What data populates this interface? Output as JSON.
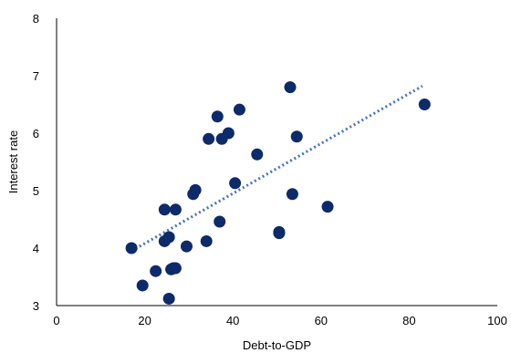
{
  "chart_data": {
    "type": "scatter",
    "title": "",
    "xlabel": "Debt-to-GDP",
    "ylabel": "Interest rate",
    "xlim": [
      0,
      100
    ],
    "ylim": [
      3,
      8
    ],
    "xticks": [
      0,
      20,
      40,
      60,
      80,
      100
    ],
    "yticks": [
      3,
      4,
      5,
      6,
      7,
      8
    ],
    "grid": false,
    "legend": "none",
    "marker_color": "#0d2a6b",
    "trendline": {
      "type": "linear",
      "style": "dotted",
      "color": "#4472c4",
      "x_start": 17,
      "y_start": 3.95,
      "x_end": 83,
      "y_end": 6.82
    },
    "series": [
      {
        "x": [
          17,
          19.5,
          22.5,
          24.5,
          24.5,
          25.5,
          25.5,
          26,
          26.5,
          27,
          27,
          29.5,
          31,
          31.5,
          34,
          34.5,
          36.5,
          37,
          37.5,
          39,
          40.5,
          41.5,
          45.5,
          50.5,
          50.5,
          53,
          53.5,
          54.5,
          61.5,
          83.5
        ],
        "y": [
          4.0,
          3.35,
          3.6,
          4.67,
          4.12,
          3.12,
          4.19,
          3.63,
          3.65,
          4.67,
          3.65,
          4.03,
          4.94,
          5.01,
          4.12,
          5.9,
          6.29,
          4.46,
          5.9,
          6.0,
          5.13,
          6.41,
          5.63,
          4.26,
          4.28,
          6.8,
          4.94,
          5.94,
          4.72,
          6.5
        ]
      }
    ]
  }
}
